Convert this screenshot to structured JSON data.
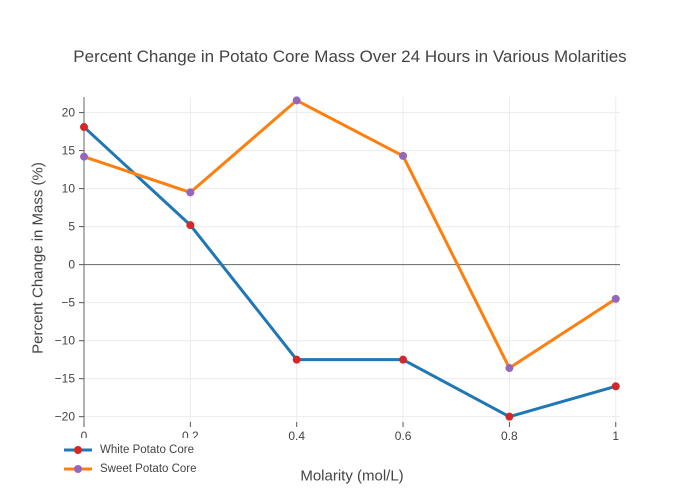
{
  "chart_data": {
    "type": "line",
    "title": "Percent Change in Potato Core Mass Over 24 Hours in Various Molarities",
    "xlabel": "Molarity (mol/L)",
    "ylabel": "Percent Change in Mass (%)",
    "x": [
      0,
      0.2,
      0.4,
      0.6,
      0.8,
      1
    ],
    "series": [
      {
        "name": "White Potato Core",
        "line_color": "#1f77b4",
        "marker_color": "#d62728",
        "values": [
          18.1,
          5.2,
          -12.5,
          -12.5,
          -20.0,
          -16.0
        ]
      },
      {
        "name": "Sweet Potato Core",
        "line_color": "#ff7f0e",
        "marker_color": "#9467bd",
        "values": [
          14.2,
          9.5,
          21.6,
          14.3,
          -13.6,
          -4.5
        ]
      }
    ],
    "xticks": {
      "values": [
        0,
        0.2,
        0.4,
        0.6,
        0.8,
        1
      ],
      "labels": [
        "0",
        "0.2",
        "0.4",
        "0.6",
        "0.8",
        "1"
      ]
    },
    "yticks": {
      "values": [
        20,
        15,
        10,
        5,
        0,
        -5,
        -10,
        -15,
        -20
      ],
      "labels": [
        "20",
        "15",
        "10",
        "5",
        "0",
        "−5",
        "−10",
        "−15",
        "−20"
      ]
    },
    "xlim": [
      0,
      1.008
    ],
    "ylim": [
      -20.7,
      22.05
    ],
    "grid": true,
    "zeroline": true,
    "legend_position": "bottom-left",
    "colors": {
      "grid": "#ebebeb",
      "zeroline": "#666666",
      "tick": "#555555",
      "text": "#444444"
    }
  }
}
